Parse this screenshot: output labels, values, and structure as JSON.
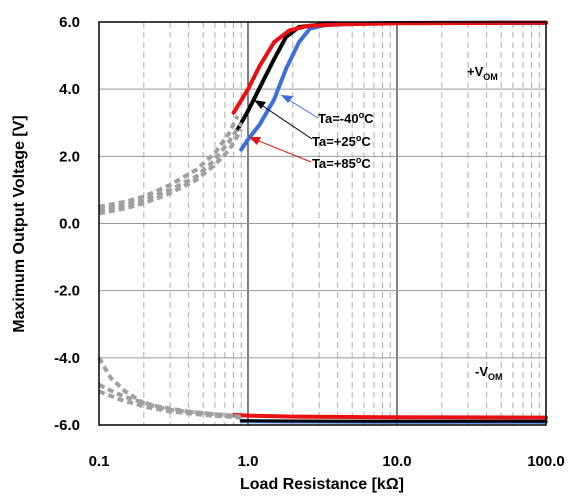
{
  "chart_data": {
    "type": "line",
    "xlabel": "Load Resistance [kΩ]",
    "ylabel": "Maximum Output Voltage [V]",
    "xscale": "log",
    "xlim": [
      0.1,
      100
    ],
    "ylim": [
      -6,
      6
    ],
    "grid": true,
    "x_ticks": [
      "0.1",
      "1.0",
      "10.0",
      "100.0"
    ],
    "y_ticks": [
      "6.0",
      "4.0",
      "2.0",
      "0.0",
      "-2.0",
      "-4.0",
      "-6.0"
    ],
    "annotations": {
      "vom_pos": {
        "base": "+V",
        "sub": "OM"
      },
      "vom_neg": {
        "base": "-V",
        "sub": "OM"
      },
      "ta_m40": {
        "prefix": "Ta=-40",
        "sup": "o",
        "suffix": "C"
      },
      "ta_25": {
        "prefix": "Ta=+25",
        "sup": "o",
        "suffix": "C"
      },
      "ta_85": {
        "prefix": "Ta=+85",
        "sup": "o",
        "suffix": "C"
      }
    },
    "series": [
      {
        "color": "#3a6fe0",
        "width": 4,
        "values": [
          [
            0.9,
            2.2
          ],
          [
            1.0,
            2.5
          ],
          [
            1.2,
            2.95
          ],
          [
            1.5,
            3.7
          ],
          [
            1.8,
            4.6
          ],
          [
            2.2,
            5.4
          ],
          [
            2.6,
            5.8
          ],
          [
            3.2,
            5.9
          ],
          [
            5,
            5.95
          ],
          [
            10,
            5.97
          ],
          [
            100,
            5.98
          ]
        ]
      },
      {
        "color": "#000000",
        "width": 4,
        "values": [
          [
            0.85,
            2.8
          ],
          [
            1.0,
            3.35
          ],
          [
            1.2,
            4.05
          ],
          [
            1.5,
            4.9
          ],
          [
            1.8,
            5.55
          ],
          [
            2.2,
            5.85
          ],
          [
            3,
            5.92
          ],
          [
            5,
            5.95
          ],
          [
            10,
            5.97
          ],
          [
            100,
            5.98
          ]
        ]
      },
      {
        "color": "#e81010",
        "width": 4,
        "values": [
          [
            0.8,
            3.3
          ],
          [
            1.0,
            4.0
          ],
          [
            1.2,
            4.7
          ],
          [
            1.5,
            5.4
          ],
          [
            1.9,
            5.75
          ],
          [
            2.5,
            5.88
          ],
          [
            4,
            5.93
          ],
          [
            10,
            5.96
          ],
          [
            100,
            5.98
          ]
        ]
      },
      {
        "color": "#e81010",
        "width": 4,
        "values": [
          [
            0.8,
            -5.7
          ],
          [
            1.0,
            -5.72
          ],
          [
            2,
            -5.75
          ],
          [
            10,
            -5.77
          ],
          [
            100,
            -5.78
          ]
        ]
      },
      {
        "color": "#3a6fe0",
        "width": 3,
        "values": [
          [
            0.9,
            -5.9
          ],
          [
            2,
            -5.91
          ],
          [
            10,
            -5.92
          ],
          [
            100,
            -5.92
          ]
        ]
      },
      {
        "color": "#000000",
        "width": 3,
        "values": [
          [
            0.9,
            -5.87
          ],
          [
            2,
            -5.88
          ],
          [
            10,
            -5.89
          ],
          [
            100,
            -5.89
          ]
        ]
      },
      {
        "color": "#a0a0a0",
        "width": 4,
        "dashed": true,
        "values": [
          [
            0.1,
            0.4
          ],
          [
            0.15,
            0.55
          ],
          [
            0.2,
            0.7
          ],
          [
            0.3,
            1.0
          ],
          [
            0.45,
            1.4
          ],
          [
            0.6,
            1.9
          ],
          [
            0.75,
            2.45
          ],
          [
            0.9,
            3.0
          ]
        ]
      },
      {
        "color": "#a0a0a0",
        "width": 4,
        "dashed": true,
        "values": [
          [
            0.1,
            0.3
          ],
          [
            0.15,
            0.45
          ],
          [
            0.2,
            0.6
          ],
          [
            0.3,
            0.9
          ],
          [
            0.45,
            1.3
          ],
          [
            0.6,
            1.75
          ],
          [
            0.75,
            2.2
          ],
          [
            0.9,
            2.8
          ]
        ]
      },
      {
        "color": "#a0a0a0",
        "width": 4,
        "dashed": true,
        "values": [
          [
            0.1,
            0.5
          ],
          [
            0.15,
            0.65
          ],
          [
            0.2,
            0.8
          ],
          [
            0.3,
            1.15
          ],
          [
            0.45,
            1.6
          ],
          [
            0.6,
            2.1
          ],
          [
            0.75,
            2.7
          ],
          [
            0.85,
            3.2
          ]
        ]
      },
      {
        "color": "#a0a0a0",
        "width": 4,
        "dashed": true,
        "values": [
          [
            0.1,
            -4.0
          ],
          [
            0.12,
            -4.6
          ],
          [
            0.15,
            -5.0
          ],
          [
            0.2,
            -5.35
          ],
          [
            0.3,
            -5.55
          ],
          [
            0.5,
            -5.65
          ],
          [
            0.8,
            -5.72
          ]
        ]
      },
      {
        "color": "#a0a0a0",
        "width": 4,
        "dashed": true,
        "values": [
          [
            0.1,
            -4.8
          ],
          [
            0.13,
            -5.05
          ],
          [
            0.17,
            -5.25
          ],
          [
            0.25,
            -5.45
          ],
          [
            0.4,
            -5.6
          ],
          [
            0.6,
            -5.68
          ],
          [
            0.9,
            -5.75
          ]
        ]
      },
      {
        "color": "#a0a0a0",
        "width": 4,
        "dashed": true,
        "values": [
          [
            0.1,
            -5.0
          ],
          [
            0.14,
            -5.25
          ],
          [
            0.2,
            -5.45
          ],
          [
            0.3,
            -5.6
          ],
          [
            0.5,
            -5.7
          ],
          [
            0.9,
            -5.78
          ]
        ]
      }
    ]
  }
}
